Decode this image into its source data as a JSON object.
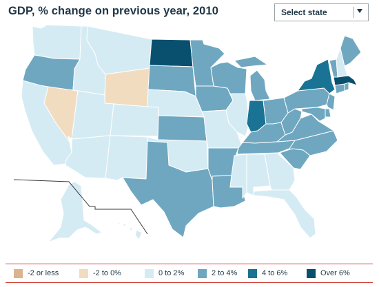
{
  "title": "GDP, % change on previous year, 2010",
  "select": {
    "label": "Select state"
  },
  "colors": {
    "neg_more": "#d9b48f",
    "neg": "#f2dcc0",
    "c0_2": "#d5ebf4",
    "c2_4": "#6fa7c0",
    "c4_6": "#1a7394",
    "c6plus": "#08506e",
    "border": "#ffffff",
    "legend_rule": "#d4453b"
  },
  "legend": [
    {
      "label": "-2 or less",
      "color": "#d9b48f"
    },
    {
      "label": "-2 to 0%",
      "color": "#f2dcc0"
    },
    {
      "label": "0 to 2%",
      "color": "#d5ebf4"
    },
    {
      "label": "2 to 4%",
      "color": "#6fa7c0"
    },
    {
      "label": "4 to 6%",
      "color": "#1a7394"
    },
    {
      "label": "Over 6%",
      "color": "#08506e"
    }
  ],
  "states": {
    "WA": "0 to 2%",
    "OR": "2 to 4%",
    "CA": "0 to 2%",
    "NV": "-2 to 0%",
    "ID": "0 to 2%",
    "MT": "0 to 2%",
    "WY": "-2 to 0%",
    "UT": "0 to 2%",
    "AZ": "0 to 2%",
    "CO": "0 to 2%",
    "NM": "0 to 2%",
    "ND": "Over 6%",
    "SD": "2 to 4%",
    "NE": "0 to 2%",
    "KS": "2 to 4%",
    "OK": "0 to 2%",
    "TX": "2 to 4%",
    "MN": "2 to 4%",
    "IA": "2 to 4%",
    "MO": "0 to 2%",
    "AR": "2 to 4%",
    "LA": "2 to 4%",
    "WI": "2 to 4%",
    "IL": "0 to 2%",
    "MI": "2 to 4%",
    "IN": "4 to 6%",
    "OH": "2 to 4%",
    "KY": "2 to 4%",
    "TN": "2 to 4%",
    "MS": "0 to 2%",
    "AL": "0 to 2%",
    "GA": "0 to 2%",
    "FL": "0 to 2%",
    "SC": "2 to 4%",
    "NC": "2 to 4%",
    "VA": "2 to 4%",
    "WV": "2 to 4%",
    "PA": "2 to 4%",
    "NY": "4 to 6%",
    "NJ": "2 to 4%",
    "DE": "2 to 4%",
    "MD": "2 to 4%",
    "CT": "2 to 4%",
    "RI": "2 to 4%",
    "MA": "Over 6%",
    "VT": "2 to 4%",
    "NH": "0 to 2%",
    "ME": "2 to 4%",
    "AK": "0 to 2%",
    "HI": "0 to 2%"
  }
}
